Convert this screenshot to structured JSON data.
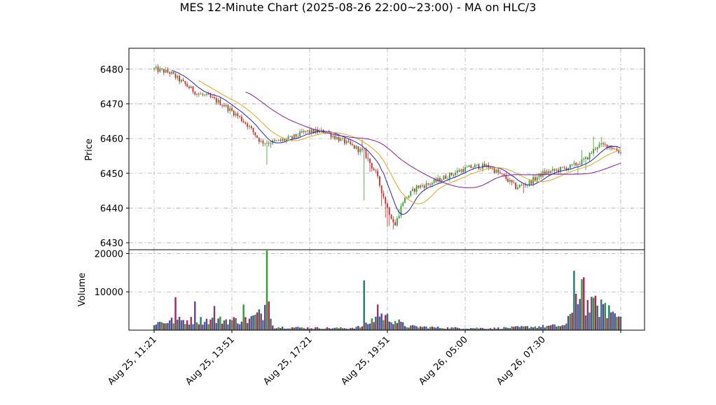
{
  "chart_data": {
    "type": "candlestick",
    "title": "MES 12-Minute Chart (2025-08-26 22:00~23:00) - MA on HLC/3",
    "price_panel": {
      "ylabel": "Price",
      "ylim": [
        6428,
        6486
      ],
      "yticks": [
        6430,
        6440,
        6450,
        6460,
        6470,
        6480
      ],
      "grid": true
    },
    "volume_panel": {
      "ylabel": "Volume",
      "ylim": [
        0,
        21000
      ],
      "yticks": [
        10000,
        20000
      ],
      "grid": true
    },
    "x_ticks": [
      {
        "index": 0,
        "label": "Aug 25, 11:21"
      },
      {
        "index": 40,
        "label": "Aug 25, 13:51"
      },
      {
        "index": 80,
        "label": "Aug 25, 17:21"
      },
      {
        "index": 120,
        "label": "Aug 25, 19:51"
      },
      {
        "index": 160,
        "label": "Aug 26, 05:00"
      },
      {
        "index": 200,
        "label": "Aug 26, 07:30"
      },
      {
        "index": 240,
        "label": ""
      }
    ],
    "bar_count": 241,
    "up_color": "#2ca02c",
    "down_color": "#d62728",
    "price_anchors": [
      [
        0,
        6480
      ],
      [
        8,
        6479
      ],
      [
        15,
        6476
      ],
      [
        22,
        6473
      ],
      [
        28,
        6472
      ],
      [
        35,
        6470
      ],
      [
        42,
        6467
      ],
      [
        48,
        6464
      ],
      [
        55,
        6459
      ],
      [
        62,
        6459
      ],
      [
        70,
        6460
      ],
      [
        78,
        6462
      ],
      [
        88,
        6462
      ],
      [
        98,
        6459
      ],
      [
        108,
        6456
      ],
      [
        114,
        6450
      ],
      [
        120,
        6440
      ],
      [
        124,
        6435
      ],
      [
        128,
        6442
      ],
      [
        135,
        6446
      ],
      [
        142,
        6447
      ],
      [
        150,
        6449
      ],
      [
        158,
        6451
      ],
      [
        165,
        6452
      ],
      [
        172,
        6452
      ],
      [
        180,
        6449
      ],
      [
        186,
        6446
      ],
      [
        192,
        6447
      ],
      [
        200,
        6450
      ],
      [
        208,
        6451
      ],
      [
        215,
        6452
      ],
      [
        222,
        6454
      ],
      [
        228,
        6458
      ],
      [
        234,
        6458
      ],
      [
        240,
        6456
      ]
    ],
    "ma_series": [
      {
        "color": "#1f1fd1",
        "period": 10
      },
      {
        "color": "#e8a317",
        "period": 20,
        "start_index": 23
      },
      {
        "color": "#8b1a9b",
        "period": 50,
        "start_index": 47
      }
    ],
    "volume_profile": [
      [
        0,
        1800
      ],
      [
        10,
        2500
      ],
      [
        18,
        2500
      ],
      [
        30,
        2600
      ],
      [
        48,
        2600
      ],
      [
        58,
        5000
      ],
      [
        62,
        800
      ],
      [
        80,
        600
      ],
      [
        100,
        500
      ],
      [
        108,
        1000
      ],
      [
        116,
        4000
      ],
      [
        124,
        2500
      ],
      [
        130,
        1000
      ],
      [
        150,
        600
      ],
      [
        175,
        500
      ],
      [
        190,
        800
      ],
      [
        200,
        1000
      ],
      [
        212,
        1200
      ],
      [
        216,
        8000
      ],
      [
        222,
        6500
      ],
      [
        230,
        5500
      ],
      [
        240,
        3500
      ]
    ],
    "volume_spikes": [
      [
        11,
        8600
      ],
      [
        21,
        7500
      ],
      [
        31,
        6300
      ],
      [
        46,
        6700
      ],
      [
        57,
        6600
      ],
      [
        58,
        20800
      ],
      [
        59,
        7500
      ],
      [
        108,
        13000
      ],
      [
        115,
        6700
      ],
      [
        216,
        15500
      ],
      [
        217,
        9500
      ],
      [
        220,
        13300
      ],
      [
        221,
        13800
      ],
      [
        227,
        9000
      ],
      [
        230,
        8000
      ],
      [
        234,
        6500
      ]
    ],
    "shocks": [
      [
        58,
        -6
      ],
      [
        60,
        -1
      ],
      [
        107,
        2
      ],
      [
        108,
        -14
      ],
      [
        110,
        1
      ],
      [
        111,
        -2
      ],
      [
        117,
        -3
      ],
      [
        119,
        -4
      ],
      [
        120,
        -5
      ],
      [
        121,
        -3
      ],
      [
        123,
        -2
      ],
      [
        126,
        2
      ],
      [
        190,
        -2
      ],
      [
        218,
        -2
      ],
      [
        220,
        2
      ],
      [
        222,
        -3
      ],
      [
        226,
        3
      ],
      [
        230,
        1
      ]
    ]
  }
}
